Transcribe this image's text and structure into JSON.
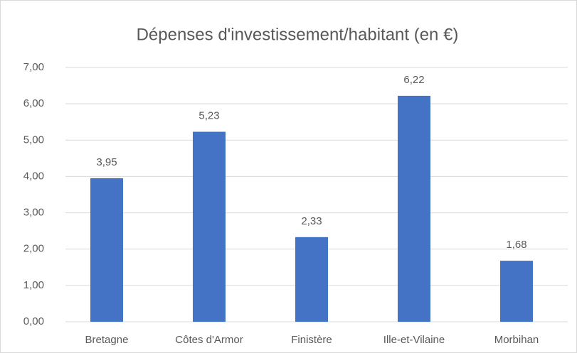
{
  "chart_data": {
    "type": "bar",
    "title": "Dépenses d'investissement/habitant (en €)",
    "categories": [
      "Bretagne",
      "Côtes d'Armor",
      "Finistère",
      "Ille-et-Vilaine",
      "Morbihan"
    ],
    "values": [
      3.95,
      5.23,
      2.33,
      6.22,
      1.68
    ],
    "value_labels": [
      "3,95",
      "5,23",
      "2,33",
      "6,22",
      "1,68"
    ],
    "color": "#4472c4",
    "ylim": [
      0,
      7
    ],
    "yticks": [
      {
        "value": 0,
        "label": "0,00"
      },
      {
        "value": 1,
        "label": "1,00"
      },
      {
        "value": 2,
        "label": "2,00"
      },
      {
        "value": 3,
        "label": "3,00"
      },
      {
        "value": 4,
        "label": "4,00"
      },
      {
        "value": 5,
        "label": "5,00"
      },
      {
        "value": 6,
        "label": "6,00"
      },
      {
        "value": 7,
        "label": "7,00"
      }
    ],
    "grid": true
  }
}
